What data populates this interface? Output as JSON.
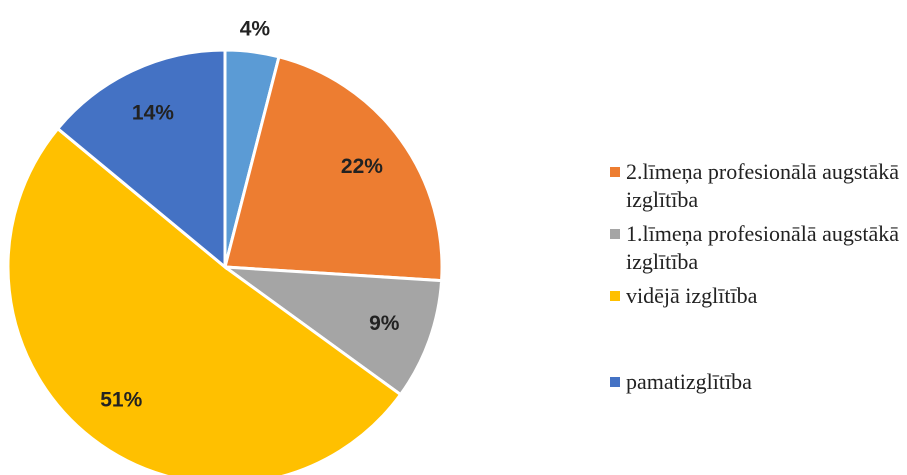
{
  "chart_data": {
    "type": "pie",
    "categories": [
      null,
      "2.līmeņa profesionālā augstākā izglītība",
      "1.līmeņa profesionālā augstākā izglītība",
      "vidējā izglītība",
      "pamatizglītība"
    ],
    "values": [
      4,
      22,
      9,
      51,
      14
    ],
    "value_labels": [
      "4%",
      "22%",
      "9%",
      "51%",
      "14%"
    ],
    "colors": [
      "#5b9bd5",
      "#ed7d31",
      "#a5a5a5",
      "#ffc000",
      "#4472c4"
    ],
    "legend": "right"
  }
}
